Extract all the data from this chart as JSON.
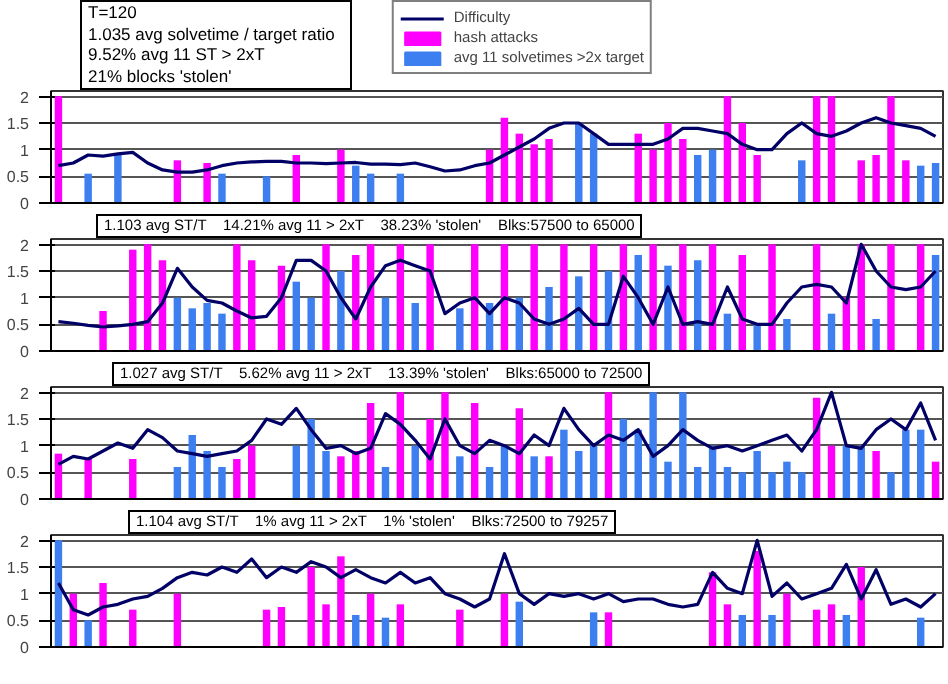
{
  "chart_data": [
    {
      "type": "bar",
      "categories": [
        null,
        null,
        null,
        null,
        null,
        null,
        null,
        null,
        null,
        null,
        null,
        null,
        null,
        null,
        null,
        null,
        null,
        null,
        null,
        null,
        null,
        null,
        null,
        null,
        null,
        null,
        null,
        null,
        null,
        null,
        null,
        null,
        null,
        null,
        null,
        null,
        null,
        null,
        null,
        null,
        null,
        null,
        null,
        null,
        null,
        null,
        null,
        null,
        null,
        null,
        null,
        null,
        null,
        null,
        null,
        null,
        null,
        null,
        null,
        null
      ],
      "series": [
        {
          "name": "Difficulty",
          "type": "line",
          "color": "#000066",
          "values": [
            0.7,
            0.75,
            0.9,
            0.88,
            0.92,
            0.95,
            0.75,
            0.62,
            0.58,
            0.58,
            0.62,
            0.7,
            0.75,
            0.77,
            0.78,
            0.78,
            0.75,
            0.75,
            0.74,
            0.75,
            0.76,
            0.73,
            0.73,
            0.72,
            0.75,
            0.68,
            0.6,
            0.62,
            0.7,
            0.75,
            0.9,
            1.05,
            1.2,
            1.4,
            1.5,
            1.5,
            1.3,
            1.1,
            1.1,
            1.1,
            1.1,
            1.2,
            1.4,
            1.4,
            1.35,
            1.3,
            1.1,
            1.0,
            1.0,
            1.3,
            1.5,
            1.3,
            1.25,
            1.35,
            1.5,
            1.6,
            1.5,
            1.45,
            1.4,
            1.25
          ]
        },
        {
          "name": "hash attacks",
          "color": "#ff00ff",
          "values": [
            2.0,
            null,
            null,
            null,
            null,
            null,
            null,
            null,
            0.8,
            null,
            0.75,
            null,
            null,
            null,
            null,
            null,
            0.9,
            null,
            null,
            1.0,
            null,
            null,
            null,
            null,
            null,
            null,
            null,
            null,
            null,
            1.0,
            1.6,
            1.3,
            1.1,
            1.2,
            null,
            null,
            null,
            null,
            null,
            1.3,
            1.0,
            1.5,
            1.2,
            null,
            null,
            2.0,
            1.5,
            0.9,
            null,
            null,
            null,
            2.0,
            2.0,
            null,
            0.8,
            0.9,
            2.0,
            0.8,
            null,
            null
          ]
        },
        {
          "name": "avg 11 solvetimes >2x target",
          "color": "#3d7ff0",
          "values": [
            null,
            null,
            0.55,
            null,
            0.9,
            null,
            null,
            null,
            null,
            null,
            null,
            0.55,
            null,
            null,
            0.5,
            null,
            null,
            null,
            null,
            null,
            0.7,
            0.55,
            null,
            0.55,
            null,
            null,
            null,
            null,
            null,
            null,
            null,
            null,
            null,
            null,
            null,
            1.5,
            1.3,
            null,
            null,
            null,
            null,
            null,
            null,
            0.9,
            1.0,
            null,
            null,
            null,
            null,
            null,
            0.8,
            null,
            null,
            null,
            null,
            null,
            null,
            null,
            0.7,
            0.75
          ]
        }
      ],
      "ylim": [
        0,
        2.1
      ],
      "yticks": [
        0,
        0.5,
        1,
        1.5,
        2
      ],
      "grid": "y",
      "legend": "top right",
      "tick_labels": "y",
      "annotations": [
        "T=120",
        "1.035 avg solvetime / target ratio",
        "9.52% avg 11 ST > 2xT",
        "21% blocks 'stolen'"
      ]
    },
    {
      "type": "bar",
      "categories": [
        null,
        null,
        null,
        null,
        null,
        null,
        null,
        null,
        null,
        null,
        null,
        null,
        null,
        null,
        null,
        null,
        null,
        null,
        null,
        null,
        null,
        null,
        null,
        null,
        null,
        null,
        null,
        null,
        null,
        null,
        null,
        null,
        null,
        null,
        null,
        null,
        null,
        null,
        null,
        null,
        null,
        null,
        null,
        null,
        null,
        null,
        null,
        null,
        null,
        null,
        null,
        null,
        null,
        null,
        null,
        null,
        null,
        null,
        null,
        null
      ],
      "series": [
        {
          "type": "line",
          "color": "#000066",
          "values": [
            0.55,
            0.52,
            0.48,
            0.45,
            0.47,
            0.5,
            0.55,
            0.9,
            1.55,
            1.2,
            0.95,
            0.9,
            0.75,
            0.62,
            0.65,
            1.0,
            1.7,
            1.7,
            1.5,
            1.0,
            0.6,
            1.2,
            1.6,
            1.7,
            1.6,
            1.5,
            0.7,
            0.9,
            1.0,
            0.7,
            1.0,
            0.9,
            0.6,
            0.5,
            0.6,
            0.8,
            0.5,
            0.5,
            1.4,
            1.0,
            0.5,
            1.2,
            0.5,
            0.55,
            0.5,
            1.2,
            0.6,
            0.5,
            0.5,
            0.9,
            1.2,
            1.25,
            1.2,
            0.9,
            2.0,
            1.5,
            1.2,
            1.15,
            1.2,
            1.5
          ]
        },
        {
          "type": "bar",
          "color": "#ff00ff",
          "values": [
            null,
            null,
            null,
            0.75,
            null,
            1.9,
            2.0,
            1.7,
            null,
            null,
            null,
            null,
            2.0,
            1.7,
            null,
            1.6,
            null,
            null,
            2.0,
            null,
            1.8,
            2.0,
            null,
            2.0,
            null,
            2.0,
            null,
            null,
            2.0,
            null,
            2.0,
            null,
            2.0,
            null,
            2.0,
            null,
            2.0,
            null,
            2.0,
            null,
            2.0,
            null,
            2.0,
            null,
            2.0,
            null,
            1.8,
            null,
            2.0,
            null,
            null,
            2.0,
            null,
            1.0,
            2.0,
            null,
            2.0,
            null,
            2.0,
            null
          ]
        },
        {
          "type": "bar",
          "color": "#3d7ff0",
          "values": [
            null,
            null,
            null,
            null,
            null,
            null,
            null,
            null,
            1.0,
            0.8,
            0.9,
            0.7,
            null,
            null,
            null,
            null,
            1.3,
            1.0,
            null,
            1.5,
            null,
            null,
            1.0,
            null,
            0.9,
            null,
            null,
            0.8,
            null,
            0.9,
            null,
            1.0,
            null,
            1.2,
            null,
            1.4,
            null,
            1.5,
            null,
            1.8,
            null,
            1.6,
            null,
            1.7,
            null,
            0.7,
            null,
            0.5,
            null,
            0.6,
            null,
            null,
            0.7,
            null,
            null,
            0.6,
            null,
            null,
            null,
            1.8
          ]
        }
      ],
      "ylim": [
        0,
        2.1
      ],
      "yticks": [
        0,
        0.5,
        1,
        1.5,
        2
      ],
      "grid": "y",
      "tick_labels": "y",
      "annotations": [
        "1.103 avg ST/T    14.21% avg 11 > 2xT    38.23% 'stolen'    Blks:57500 to 65000"
      ]
    },
    {
      "type": "bar",
      "categories": [
        null,
        null,
        null,
        null,
        null,
        null,
        null,
        null,
        null,
        null,
        null,
        null,
        null,
        null,
        null,
        null,
        null,
        null,
        null,
        null,
        null,
        null,
        null,
        null,
        null,
        null,
        null,
        null,
        null,
        null,
        null,
        null,
        null,
        null,
        null,
        null,
        null,
        null,
        null,
        null,
        null,
        null,
        null,
        null,
        null,
        null,
        null,
        null,
        null,
        null,
        null,
        null,
        null,
        null,
        null,
        null,
        null,
        null,
        null,
        null
      ],
      "series": [
        {
          "type": "line",
          "color": "#000066",
          "values": [
            0.65,
            0.8,
            0.75,
            0.9,
            1.05,
            0.95,
            1.3,
            1.15,
            0.9,
            0.85,
            0.8,
            0.85,
            0.9,
            1.1,
            1.5,
            1.4,
            1.7,
            1.3,
            0.95,
            1.0,
            0.85,
            0.95,
            1.6,
            1.4,
            1.1,
            0.75,
            1.5,
            1.0,
            0.85,
            1.1,
            1.0,
            0.85,
            1.2,
            1.0,
            1.7,
            1.3,
            1.0,
            1.2,
            1.1,
            1.3,
            0.8,
            1.0,
            1.3,
            1.1,
            0.95,
            1.0,
            0.9,
            1.0,
            1.1,
            1.2,
            0.9,
            1.3,
            2.0,
            1.0,
            0.95,
            1.3,
            1.5,
            1.3,
            1.8,
            1.1
          ]
        },
        {
          "type": "bar",
          "color": "#ff00ff",
          "values": [
            0.85,
            null,
            0.75,
            null,
            null,
            0.75,
            null,
            null,
            null,
            null,
            null,
            null,
            0.75,
            1.0,
            null,
            null,
            null,
            null,
            null,
            0.8,
            0.9,
            1.8,
            null,
            2.0,
            null,
            1.5,
            2.0,
            null,
            1.8,
            null,
            null,
            1.7,
            null,
            0.8,
            null,
            null,
            null,
            2.0,
            null,
            null,
            null,
            null,
            null,
            null,
            null,
            null,
            null,
            null,
            null,
            null,
            null,
            1.9,
            1.0,
            null,
            null,
            0.9,
            null,
            null,
            null,
            0.7
          ]
        },
        {
          "type": "bar",
          "color": "#3d7ff0",
          "values": [
            null,
            null,
            null,
            null,
            null,
            null,
            null,
            null,
            0.6,
            1.2,
            0.9,
            0.6,
            null,
            null,
            null,
            null,
            1.0,
            1.5,
            0.9,
            null,
            null,
            null,
            0.6,
            null,
            1.0,
            null,
            null,
            0.8,
            null,
            0.6,
            1.0,
            null,
            0.8,
            null,
            1.3,
            0.9,
            1.0,
            null,
            1.5,
            1.3,
            2.0,
            0.7,
            2.0,
            0.6,
            1.0,
            0.6,
            0.5,
            0.9,
            0.5,
            0.7,
            0.5,
            null,
            null,
            1.0,
            1.0,
            null,
            0.5,
            1.3,
            1.3,
            null
          ]
        }
      ],
      "ylim": [
        0,
        2.1
      ],
      "yticks": [
        0,
        0.5,
        1,
        1.5,
        2
      ],
      "grid": "y",
      "tick_labels": "y",
      "annotations": [
        "1.027 avg ST/T    5.62% avg 11 > 2xT    13.39% 'stolen'    Blks:65000 to 72500"
      ]
    },
    {
      "type": "bar",
      "categories": [
        null,
        null,
        null,
        null,
        null,
        null,
        null,
        null,
        null,
        null,
        null,
        null,
        null,
        null,
        null,
        null,
        null,
        null,
        null,
        null,
        null,
        null,
        null,
        null,
        null,
        null,
        null,
        null,
        null,
        null,
        null,
        null,
        null,
        null,
        null,
        null,
        null,
        null,
        null,
        null,
        null,
        null,
        null,
        null,
        null,
        null,
        null,
        null,
        null,
        null,
        null,
        null,
        null,
        null,
        null,
        null,
        null,
        null,
        null,
        null
      ],
      "series": [
        {
          "type": "line",
          "color": "#000066",
          "values": [
            1.2,
            0.7,
            0.6,
            0.75,
            0.8,
            0.9,
            0.95,
            1.1,
            1.3,
            1.4,
            1.35,
            1.5,
            1.4,
            1.65,
            1.3,
            1.5,
            1.4,
            1.6,
            1.5,
            1.3,
            1.45,
            1.3,
            1.2,
            1.4,
            1.2,
            1.3,
            1.0,
            0.9,
            0.75,
            0.9,
            1.75,
            1.0,
            0.8,
            1.0,
            0.95,
            1.0,
            0.9,
            1.0,
            0.85,
            0.9,
            0.9,
            0.8,
            0.75,
            0.8,
            1.4,
            1.1,
            1.0,
            2.0,
            0.95,
            1.2,
            0.9,
            1.0,
            1.1,
            1.55,
            0.9,
            1.45,
            0.8,
            0.9,
            0.75,
            1.0
          ]
        },
        {
          "type": "bar",
          "color": "#ff00ff",
          "values": [
            null,
            1.0,
            null,
            1.2,
            null,
            0.7,
            null,
            null,
            1.0,
            null,
            null,
            null,
            null,
            null,
            0.7,
            0.75,
            null,
            1.5,
            0.8,
            1.7,
            null,
            1.0,
            null,
            0.8,
            null,
            null,
            null,
            0.7,
            null,
            null,
            1.0,
            null,
            null,
            null,
            null,
            null,
            null,
            0.65,
            null,
            null,
            null,
            null,
            null,
            null,
            1.4,
            0.8,
            null,
            1.8,
            null,
            1.0,
            null,
            0.7,
            0.8,
            null,
            1.5,
            null,
            null,
            null,
            null,
            null
          ]
        },
        {
          "type": "bar",
          "color": "#3d7ff0",
          "values": [
            2.0,
            null,
            0.5,
            null,
            null,
            null,
            null,
            null,
            null,
            null,
            null,
            null,
            null,
            null,
            null,
            null,
            null,
            null,
            null,
            null,
            0.6,
            null,
            0.55,
            null,
            null,
            null,
            null,
            null,
            null,
            null,
            null,
            0.85,
            null,
            null,
            null,
            null,
            0.65,
            null,
            null,
            null,
            null,
            null,
            null,
            null,
            null,
            null,
            0.6,
            null,
            0.6,
            null,
            null,
            null,
            null,
            0.6,
            null,
            null,
            null,
            null,
            0.55,
            null
          ]
        }
      ],
      "ylim": [
        0,
        2.1
      ],
      "yticks": [
        0,
        0.5,
        1,
        1.5,
        2
      ],
      "grid": "y",
      "tick_labels": "y",
      "annotations": [
        "1.104 avg ST/T    1% avg 11 > 2xT    1% 'stolen'    Blks:72500 to 79257"
      ]
    }
  ]
}
